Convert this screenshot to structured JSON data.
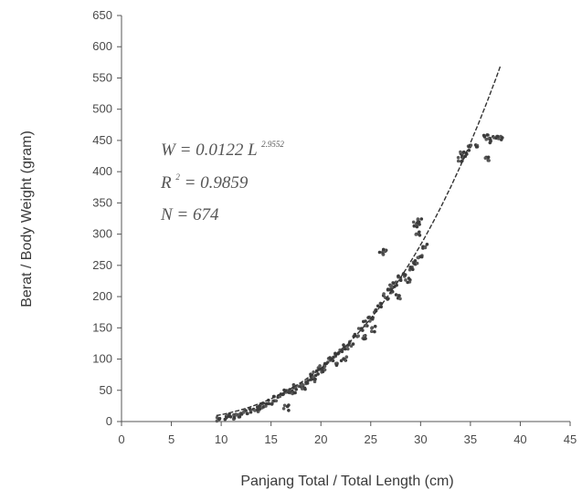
{
  "chart_data": {
    "type": "scatter",
    "title": "",
    "xlabel": "Panjang Total / Total Length (cm)",
    "ylabel": "Berat / Body Weight (gram)",
    "xlim": [
      0,
      45
    ],
    "ylim": [
      0,
      650
    ],
    "x_ticks": [
      "0",
      "5",
      "10",
      "15",
      "20",
      "25",
      "30",
      "35",
      "40",
      "45"
    ],
    "y_ticks": [
      "0",
      "50",
      "100",
      "150",
      "200",
      "250",
      "300",
      "350",
      "400",
      "450",
      "500",
      "550",
      "600",
      "650"
    ],
    "grid": false,
    "annotations": {
      "eq1_main": "W  = 0.0122 L",
      "eq1_sup": "2.9552",
      "eq2_a": "R",
      "eq2_sup": "2",
      "eq2_b": " = 0.9859",
      "eq3": "N  = 674"
    },
    "fit": {
      "a": 0.0122,
      "b": 2.9552,
      "x_range": [
        9.5,
        38
      ],
      "style": "dashed"
    },
    "scatter_points": [
      [
        9.8,
        4
      ],
      [
        10.5,
        6
      ],
      [
        11,
        8
      ],
      [
        11.5,
        9
      ],
      [
        12,
        11
      ],
      [
        12.5,
        14
      ],
      [
        13,
        18
      ],
      [
        13.5,
        20
      ],
      [
        14,
        24
      ],
      [
        14.5,
        28
      ],
      [
        15,
        31
      ],
      [
        15.5,
        36
      ],
      [
        16,
        40
      ],
      [
        16.5,
        46
      ],
      [
        17,
        50
      ],
      [
        17.5,
        55
      ],
      [
        18,
        60
      ],
      [
        18.5,
        65
      ],
      [
        19,
        72
      ],
      [
        19.5,
        78
      ],
      [
        20,
        85
      ],
      [
        20.5,
        92
      ],
      [
        21,
        98
      ],
      [
        21.5,
        105
      ],
      [
        22,
        112
      ],
      [
        22.5,
        120
      ],
      [
        23,
        125
      ],
      [
        23.5,
        138
      ],
      [
        24,
        148
      ],
      [
        24.5,
        157
      ],
      [
        25,
        165
      ],
      [
        25.5,
        175
      ],
      [
        26,
        185
      ],
      [
        26.5,
        200
      ],
      [
        27,
        210
      ],
      [
        27.5,
        220
      ],
      [
        28,
        230
      ],
      [
        28.5,
        235
      ],
      [
        29,
        245
      ],
      [
        29.5,
        255
      ],
      [
        30,
        262
      ],
      [
        30.5,
        280
      ],
      [
        26,
        270
      ],
      [
        26.5,
        275
      ],
      [
        27,
        215
      ],
      [
        29.5,
        315
      ],
      [
        30,
        320
      ],
      [
        29.8,
        300
      ],
      [
        28.7,
        225
      ],
      [
        27.7,
        200
      ],
      [
        25.2,
        148
      ],
      [
        24.3,
        135
      ],
      [
        22.3,
        100
      ],
      [
        21.7,
        90
      ],
      [
        20.3,
        80
      ],
      [
        19.2,
        68
      ],
      [
        18.3,
        55
      ],
      [
        17.2,
        48
      ],
      [
        16.5,
        22
      ],
      [
        34,
        420
      ],
      [
        34.5,
        425
      ],
      [
        34.2,
        430
      ],
      [
        35,
        438
      ],
      [
        36.5,
        455
      ],
      [
        37,
        450
      ],
      [
        37.5,
        458
      ],
      [
        38,
        455
      ],
      [
        36.7,
        420
      ],
      [
        35.5,
        440
      ]
    ]
  }
}
